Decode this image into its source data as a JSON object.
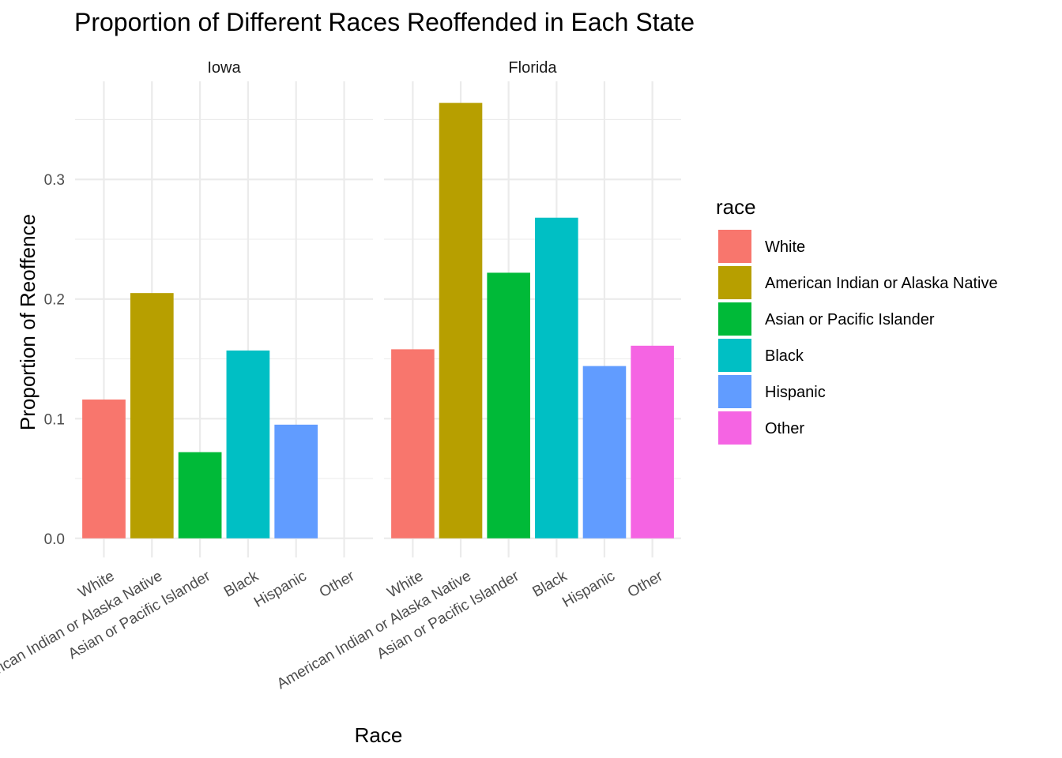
{
  "chart_data": {
    "type": "bar",
    "title": "Proportion of Different Races Reoffended in Each State",
    "xlabel": "Race",
    "ylabel": "Proportion of Reoffence",
    "categories": [
      "White",
      "American Indian or Alaska Native",
      "Asian or Pacific Islander",
      "Black",
      "Hispanic",
      "Other"
    ],
    "y_ticks": [
      "0.0",
      "0.1",
      "0.2",
      "0.3"
    ],
    "ylim": [
      -0.016,
      0.382
    ],
    "grid": true,
    "legend": {
      "title": "race",
      "position": "right",
      "entries": [
        "White",
        "American Indian or Alaska Native",
        "Asian or Pacific Islander",
        "Black",
        "Hispanic",
        "Other"
      ]
    },
    "colors": [
      "#F8766D",
      "#B79F00",
      "#00BA38",
      "#00BFC4",
      "#619CFF",
      "#F564E3"
    ],
    "panels": [
      {
        "name": "Iowa",
        "values": [
          0.116,
          0.205,
          0.072,
          0.157,
          0.095,
          null
        ]
      },
      {
        "name": "Florida",
        "values": [
          0.158,
          0.364,
          0.222,
          0.268,
          0.144,
          0.161
        ]
      }
    ]
  }
}
